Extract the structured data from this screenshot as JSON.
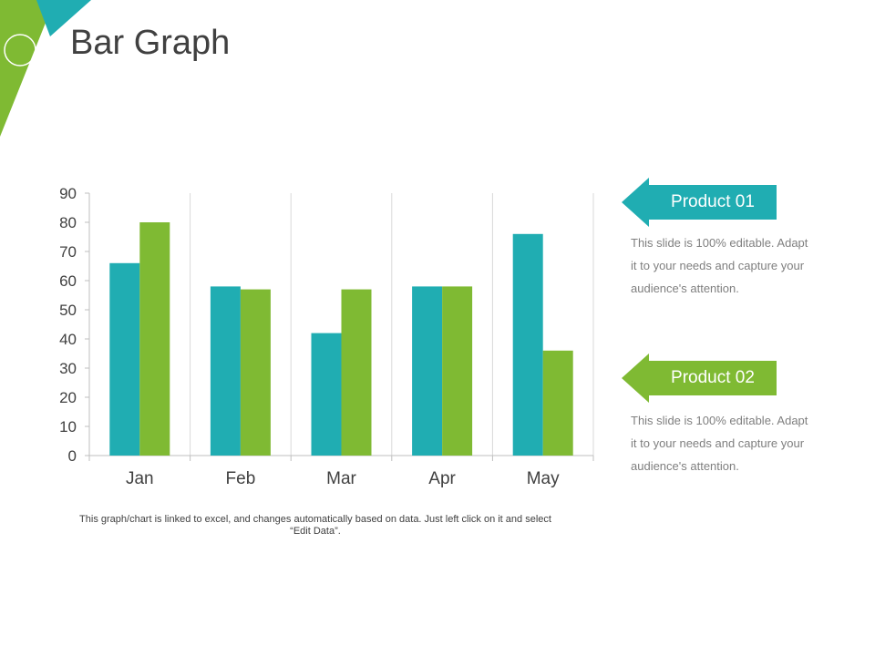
{
  "slide": {
    "title": "Bar Graph",
    "note": "This graph/chart is linked to excel,  and changes automatically based on data. Just left click on it and select “Edit Data”.",
    "colors": {
      "teal": "#20adb2",
      "green": "#7fba33",
      "dark_green": "#5c9b2b",
      "text": "#404040",
      "grid": "#d9d9d9"
    }
  },
  "products": [
    {
      "label": "Product 01",
      "color": "#20adb2",
      "description": "This slide is 100% editable. Adapt it to your needs and capture your audience's attention."
    },
    {
      "label": "Product 02",
      "color": "#7fba33",
      "description": "This slide is 100% editable. Adapt it to your needs and capture your audience's attention."
    }
  ],
  "chart_data": {
    "type": "bar",
    "categories": [
      "Jan",
      "Feb",
      "Mar",
      "Apr",
      "May"
    ],
    "series": [
      {
        "color": "#20adb2",
        "values": [
          66,
          58,
          42,
          58,
          76
        ]
      },
      {
        "color": "#7fba33",
        "values": [
          80,
          57,
          57,
          58,
          36
        ]
      }
    ],
    "ylim": [
      0,
      90
    ],
    "yticks": [
      0,
      10,
      20,
      30,
      40,
      50,
      60,
      70,
      80,
      90
    ],
    "grid": "vertical",
    "legend": "none"
  }
}
